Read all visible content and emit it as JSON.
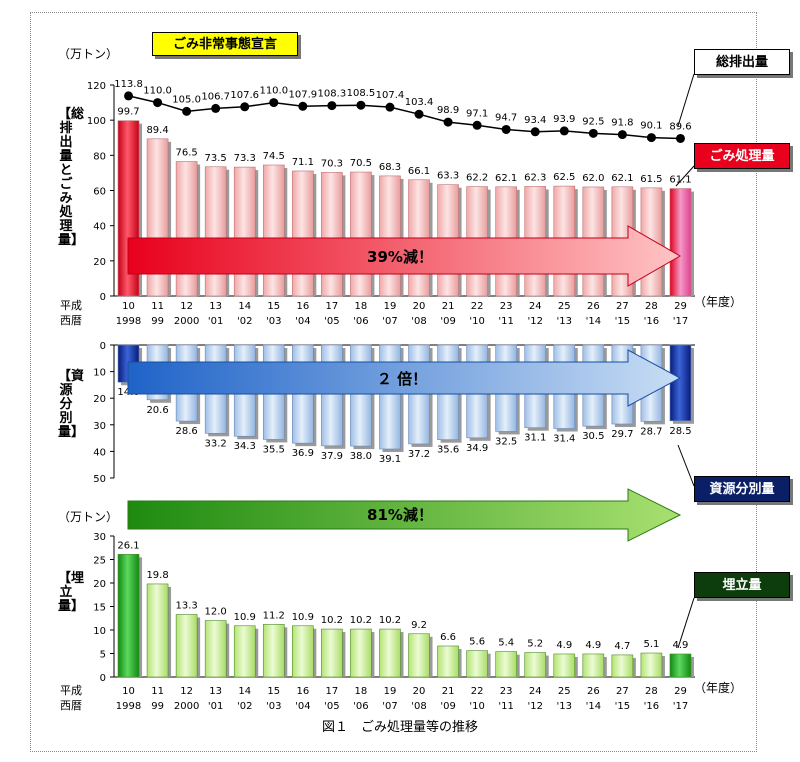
{
  "figure_caption": "図１　ごみ処理量等の推移",
  "unit_label": "（万トン）",
  "year_label": "（年度）",
  "era_row1": "平成",
  "era_row2": "西暦",
  "callouts": {
    "emergency": "ごみ非常事態宣言",
    "total_emission": "総排出量",
    "processing": "ごみ処理量",
    "resource": "資源分別量",
    "landfill": "埋立量"
  },
  "side_labels": {
    "top": "【総排出量とごみ処理量】",
    "middle": "【資源分別量】",
    "bottom": "【埋立量】"
  },
  "arrows": {
    "processing_change": "39%減！",
    "resource_change": "２ 倍！",
    "landfill_change": "81%減！"
  },
  "colors": {
    "processing_bar": "#f4b6b6",
    "processing_accent": "#e0001b",
    "resource_bar": "#b9d2ee",
    "resource_accent": "#0a2a8c",
    "landfill_bar": "#c6ee8a",
    "landfill_accent": "#1f9e1f",
    "line": "#000000"
  },
  "chart_data": [
    {
      "type": "line+bar",
      "categories_heisei": [
        "10",
        "11",
        "12",
        "13",
        "14",
        "15",
        "16",
        "17",
        "18",
        "19",
        "20",
        "21",
        "22",
        "23",
        "24",
        "25",
        "26",
        "27",
        "28",
        "29"
      ],
      "categories_western": [
        "1998",
        "99",
        "2000",
        "'01",
        "'02",
        "'03",
        "'04",
        "'05",
        "'06",
        "'07",
        "'08",
        "'09",
        "'10",
        "'11",
        "'12",
        "'13",
        "'14",
        "'15",
        "'16",
        "'17"
      ],
      "ylim": [
        0,
        120
      ],
      "yticks": [
        0,
        20,
        40,
        60,
        80,
        100,
        120
      ],
      "series": [
        {
          "name": "総排出量",
          "type": "line",
          "values": [
            113.8,
            110.0,
            105.0,
            106.7,
            107.6,
            110.0,
            107.9,
            108.3,
            108.5,
            107.4,
            103.4,
            98.9,
            97.1,
            94.7,
            93.4,
            93.9,
            92.5,
            91.8,
            90.1,
            89.6
          ],
          "labels": [
            "113.8",
            "110.0",
            "105.0",
            "106.7",
            "107.6",
            "110.0",
            "107.9",
            "108.3",
            "108.5",
            "107.4",
            "103.4",
            "98.9",
            "97.1",
            "94.7",
            "93.4",
            "93.9",
            "92.5",
            "91.8",
            "90.1",
            "89.6"
          ]
        },
        {
          "name": "ごみ処理量",
          "type": "bar",
          "values": [
            99.7,
            89.4,
            76.5,
            73.5,
            73.3,
            74.5,
            71.1,
            70.3,
            70.5,
            68.3,
            66.1,
            63.3,
            62.2,
            62.1,
            62.3,
            62.5,
            62.0,
            62.1,
            61.5,
            61.1
          ],
          "labels": [
            "99.7",
            "89.4",
            "76.5",
            "73.5",
            "73.3",
            "74.5",
            "71.1",
            "70.3",
            "70.5",
            "68.3",
            "66.1",
            "63.3",
            "62.2",
            "62.1",
            "62.3",
            "62.5",
            "62.0",
            "62.1",
            "61.5",
            "61.1"
          ]
        }
      ]
    },
    {
      "type": "bar",
      "orientation": "downward",
      "ylim": [
        0,
        50
      ],
      "yticks": [
        0,
        10,
        20,
        30,
        40,
        50
      ],
      "series": [
        {
          "name": "資源分別量",
          "values": [
            14.0,
            20.6,
            28.6,
            33.2,
            34.3,
            35.5,
            36.9,
            37.9,
            38.0,
            39.1,
            37.2,
            35.6,
            34.9,
            32.5,
            31.1,
            31.4,
            30.5,
            29.7,
            28.7,
            28.5
          ],
          "labels": [
            "14.0",
            "20.6",
            "28.6",
            "33.2",
            "34.3",
            "35.5",
            "36.9",
            "37.9",
            "38.0",
            "39.1",
            "37.2",
            "35.6",
            "34.9",
            "32.5",
            "31.1",
            "31.4",
            "30.5",
            "29.7",
            "28.7",
            "28.5"
          ]
        }
      ]
    },
    {
      "type": "bar",
      "ylim": [
        0,
        30
      ],
      "yticks": [
        0,
        5,
        10,
        15,
        20,
        25,
        30
      ],
      "series": [
        {
          "name": "埋立量",
          "values": [
            26.1,
            19.8,
            13.3,
            12.0,
            10.9,
            11.2,
            10.9,
            10.2,
            10.2,
            10.2,
            9.2,
            6.6,
            5.6,
            5.4,
            5.2,
            4.9,
            4.9,
            4.7,
            5.1,
            4.9
          ],
          "labels": [
            "26.1",
            "19.8",
            "13.3",
            "12.0",
            "10.9",
            "11.2",
            "10.9",
            "10.2",
            "10.2",
            "10.2",
            "9.2",
            "6.6",
            "5.6",
            "5.4",
            "5.2",
            "4.9",
            "4.9",
            "4.7",
            "5.1",
            "4.9"
          ]
        }
      ]
    }
  ]
}
